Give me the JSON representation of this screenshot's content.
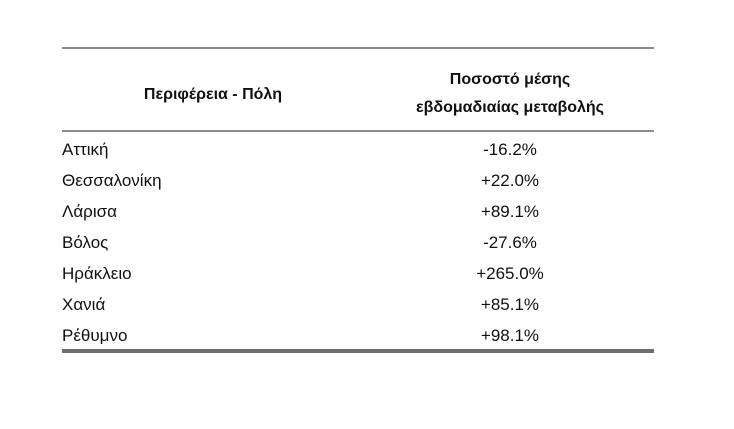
{
  "table": {
    "header": [
      "Περιφέρεια - Πόλη",
      [
        "Ποσοστό μέσης",
        "εβδομαδιαίας μεταβολής"
      ]
    ],
    "rows": [
      [
        "Αττική",
        "-16.2%"
      ],
      [
        "Θεσσαλονίκη",
        "+22.0%"
      ],
      [
        "Λάρισα",
        "+89.1%"
      ],
      [
        "Βόλος",
        "-27.6%"
      ],
      [
        "Ηράκλειο",
        "+265.0%"
      ],
      [
        "Χανιά",
        "+85.1%"
      ],
      [
        "Ρέθυμνο",
        "+98.1%"
      ]
    ]
  }
}
